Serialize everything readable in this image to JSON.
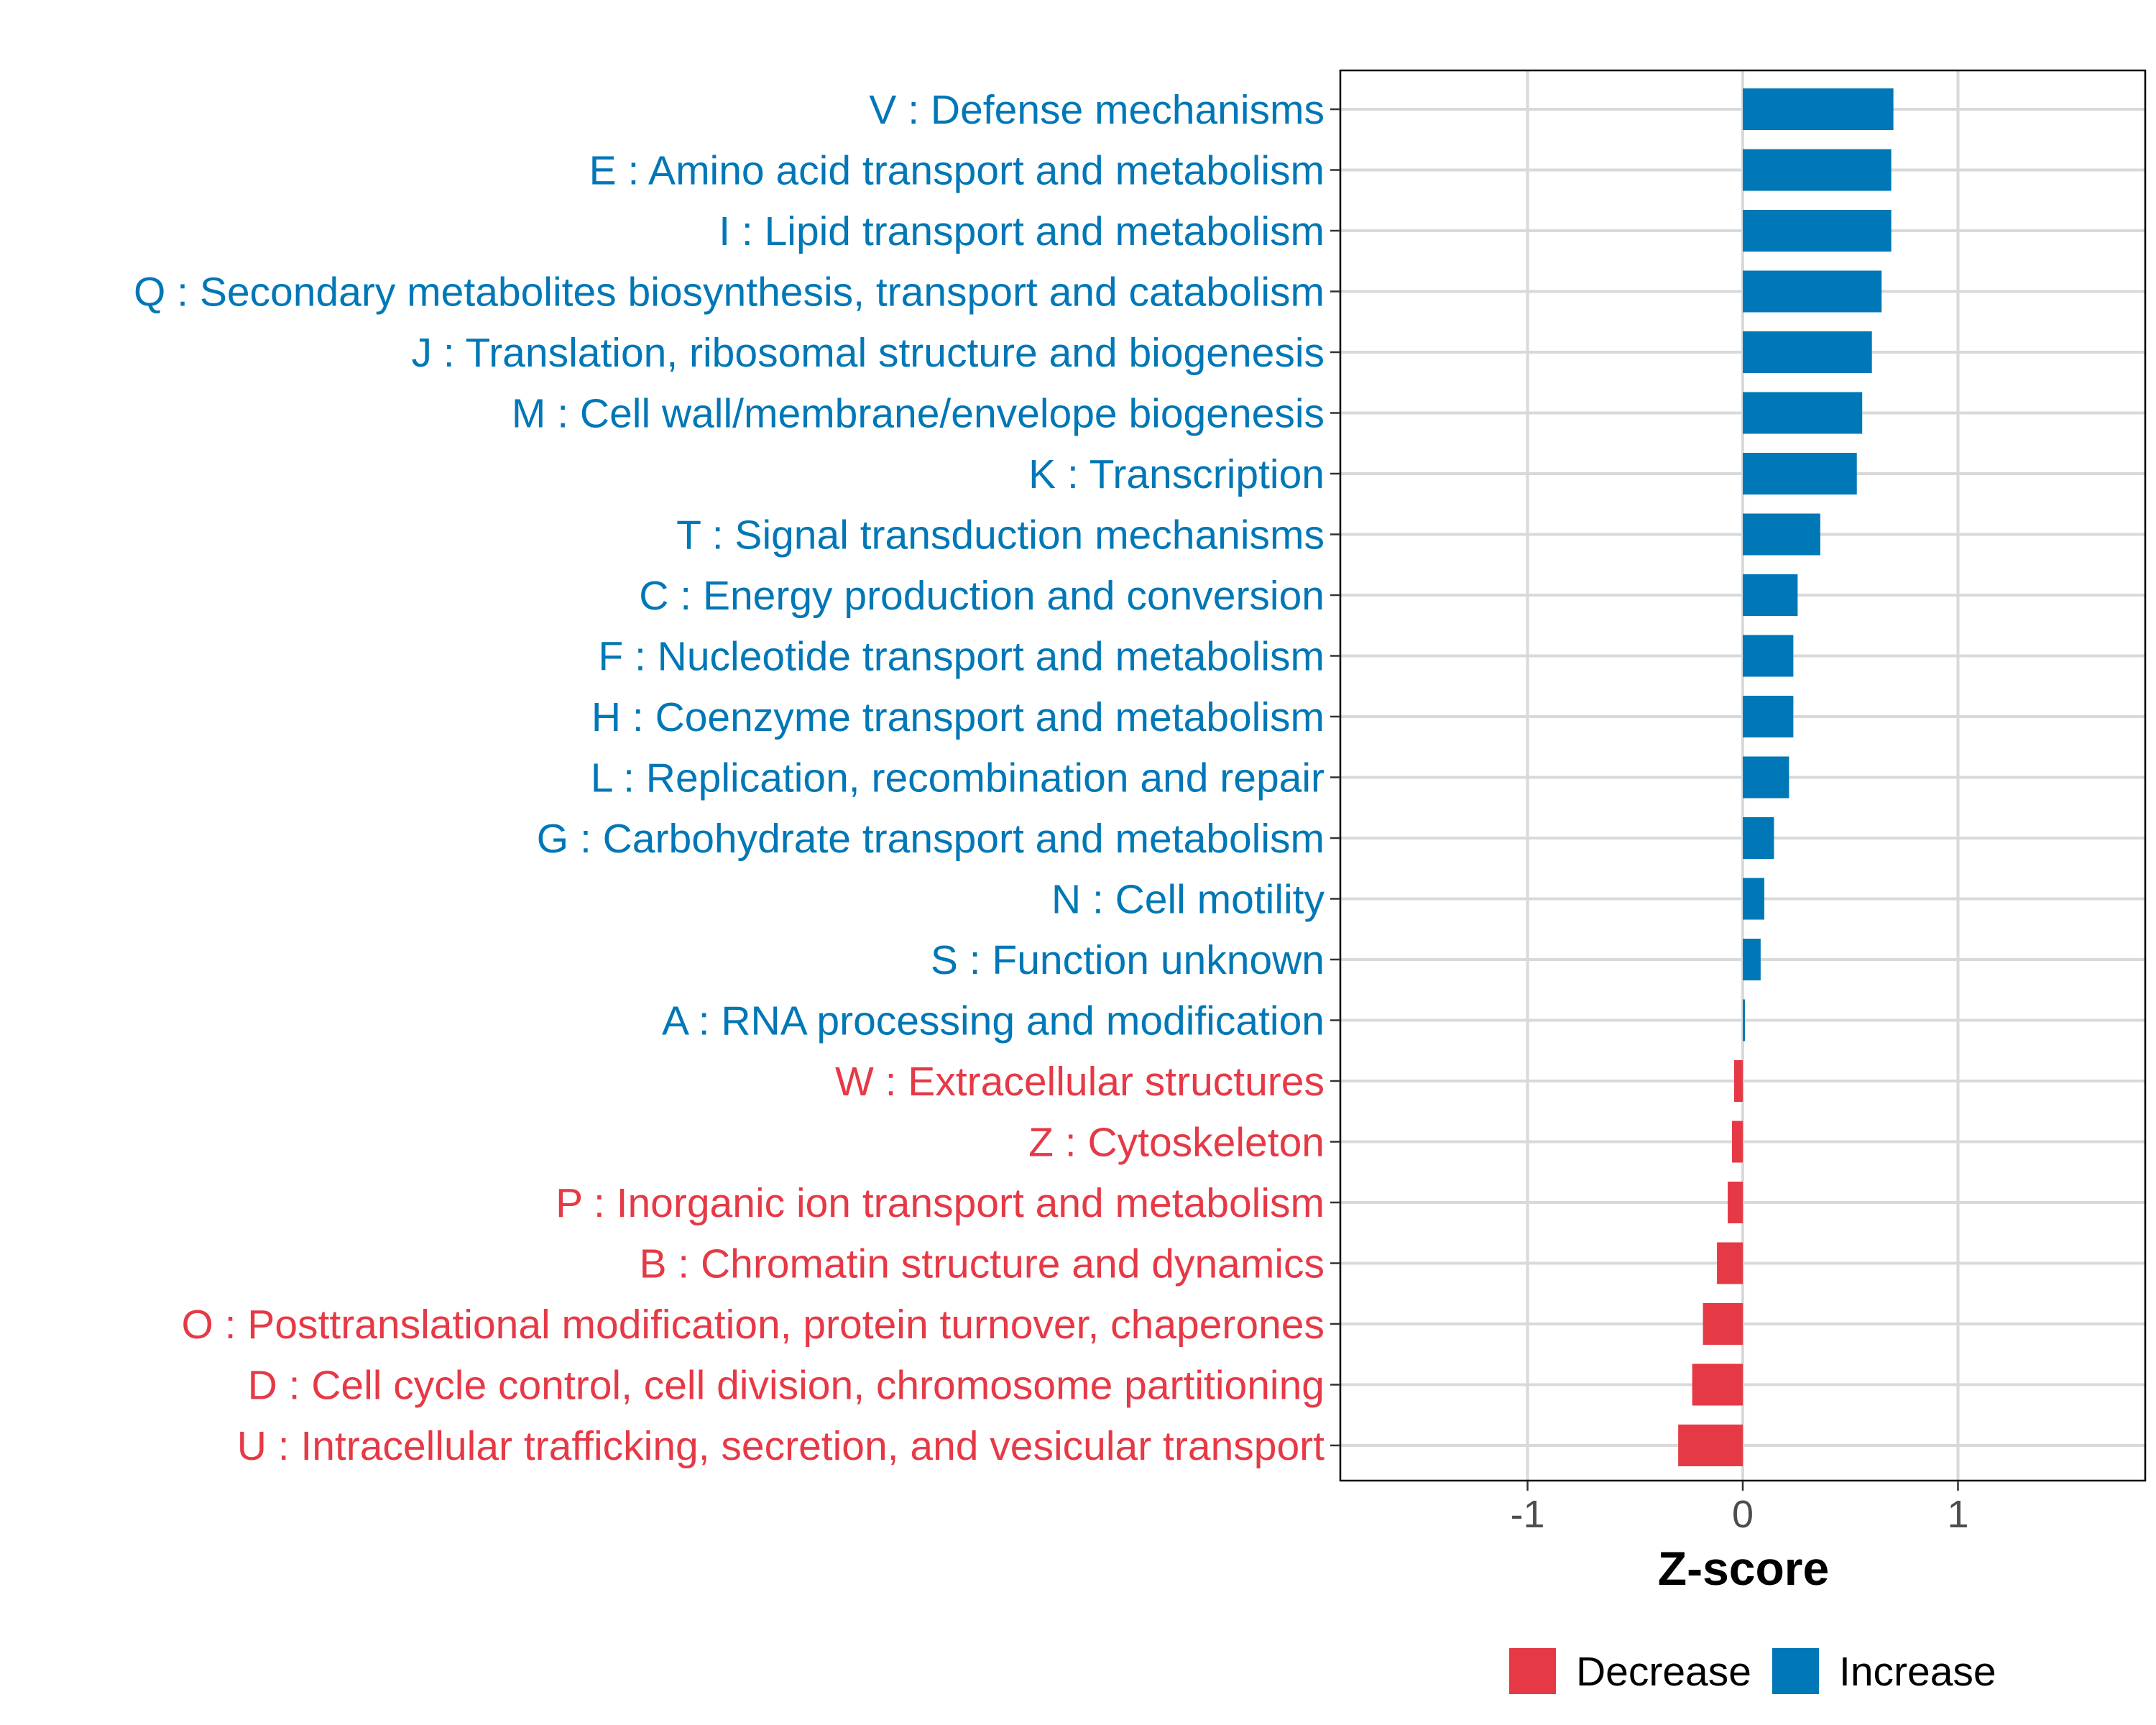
{
  "chart_data": {
    "type": "bar",
    "orientation": "horizontal",
    "title": "",
    "xlabel": "Z-score",
    "ylabel": "",
    "xlim": [
      -1.87,
      1.87
    ],
    "xticks": [
      -1,
      0,
      1
    ],
    "xtick_labels": [
      "-1",
      "0",
      "1"
    ],
    "grid": true,
    "legend_position": "bottom",
    "colors": {
      "Decrease": "#E63946",
      "Increase": "#0077B6"
    },
    "legend": [
      {
        "label": "Decrease",
        "color": "#E63946"
      },
      {
        "label": "Increase",
        "color": "#0077B6"
      }
    ],
    "categories": [
      "V : Defense mechanisms",
      "E : Amino acid transport and metabolism",
      "I : Lipid transport and metabolism",
      "Q : Secondary metabolites biosynthesis, transport and catabolism",
      "J : Translation, ribosomal structure and biogenesis",
      "M : Cell wall/membrane/envelope biogenesis",
      "K : Transcription",
      "T : Signal transduction mechanisms",
      "C : Energy production and conversion",
      "F : Nucleotide transport and metabolism",
      "H : Coenzyme transport and metabolism",
      "L : Replication, recombination and repair",
      "G : Carbohydrate transport and metabolism",
      "N : Cell motility",
      "S : Function unknown",
      "A : RNA processing and modification",
      "W : Extracellular structures",
      "Z : Cytoskeleton",
      "P : Inorganic ion transport and metabolism",
      "B : Chromatin structure and dynamics",
      "O : Posttranslational modification, protein turnover, chaperones",
      "D : Cell cycle control, cell division, chromosome partitioning",
      "U : Intracellular trafficking, secretion, and vesicular transport"
    ],
    "values": [
      0.7,
      0.69,
      0.69,
      0.645,
      0.6,
      0.555,
      0.53,
      0.36,
      0.255,
      0.235,
      0.235,
      0.215,
      0.145,
      0.1,
      0.083,
      0.01,
      -0.04,
      -0.05,
      -0.07,
      -0.12,
      -0.185,
      -0.235,
      -0.3
    ],
    "groups": [
      "Increase",
      "Increase",
      "Increase",
      "Increase",
      "Increase",
      "Increase",
      "Increase",
      "Increase",
      "Increase",
      "Increase",
      "Increase",
      "Increase",
      "Increase",
      "Increase",
      "Increase",
      "Increase",
      "Decrease",
      "Decrease",
      "Decrease",
      "Decrease",
      "Decrease",
      "Decrease",
      "Decrease"
    ]
  }
}
